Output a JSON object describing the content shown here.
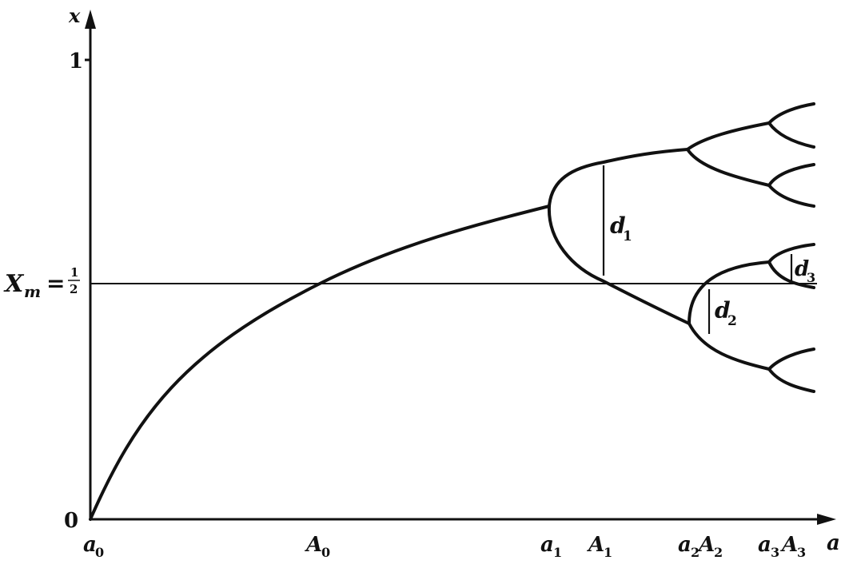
{
  "axes": {
    "y_label": "x",
    "x_label": "a",
    "y_tick_one": "1",
    "y_tick_zero": "0",
    "xm_label": "X",
    "xm_sub": "m",
    "xm_eq": "=",
    "xm_num": "1",
    "xm_den": "2"
  },
  "x_ticks": [
    {
      "base": "a",
      "sub": "0"
    },
    {
      "base": "A",
      "sub": "0"
    },
    {
      "base": "a",
      "sub": "1"
    },
    {
      "base": "A",
      "sub": "1"
    },
    {
      "base": "a",
      "sub": "2"
    },
    {
      "base": "A",
      "sub": "2"
    },
    {
      "base": "a",
      "sub": "3"
    },
    {
      "base": "A",
      "sub": "3"
    }
  ],
  "distances": [
    {
      "base": "d",
      "sub": "1"
    },
    {
      "base": "d",
      "sub": "2"
    },
    {
      "base": "d",
      "sub": "3"
    }
  ]
}
